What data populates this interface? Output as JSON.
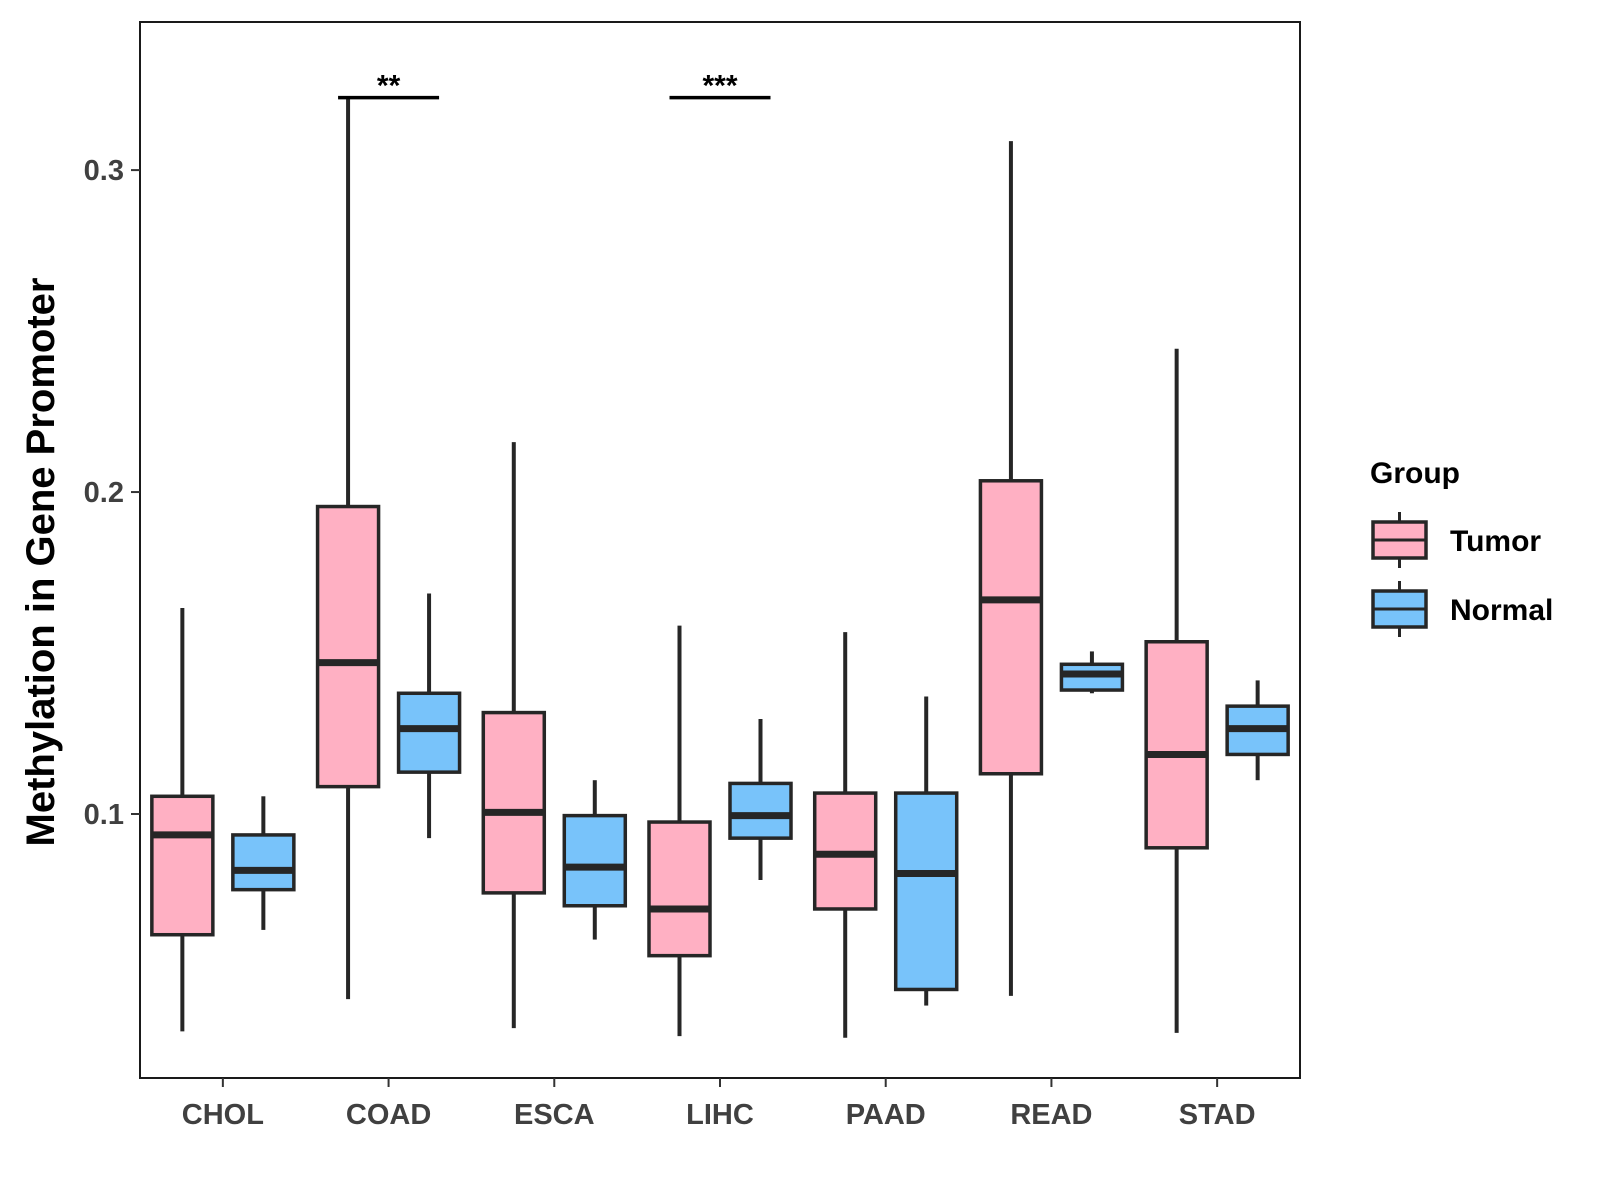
{
  "chart_data": {
    "type": "box",
    "title": "",
    "xlabel": "",
    "ylabel": "Methylation in Gene Promoter",
    "ylim": [
      0.018,
      0.346
    ],
    "yticks": [
      0.1,
      0.2,
      0.3
    ],
    "ytick_labels": [
      "0.1",
      "0.2",
      "0.3"
    ],
    "categories": [
      "CHOL",
      "COAD",
      "ESCA",
      "LIHC",
      "PAAD",
      "READ",
      "STAD"
    ],
    "legend": {
      "title": "Group",
      "position": "right",
      "entries": [
        {
          "name": "Tumor",
          "color": "#FFB0C3"
        },
        {
          "name": "Normal",
          "color": "#78C3FA"
        }
      ]
    },
    "series": [
      {
        "name": "Tumor",
        "color": "#FFB0C3",
        "boxes": [
          {
            "category": "CHOL",
            "min": 0.0325,
            "q1": 0.0625,
            "median": 0.0935,
            "q3": 0.1055,
            "max": 0.164
          },
          {
            "category": "COAD",
            "min": 0.0425,
            "q1": 0.1085,
            "median": 0.147,
            "q3": 0.1955,
            "max": 0.3225
          },
          {
            "category": "ESCA",
            "min": 0.0335,
            "q1": 0.0755,
            "median": 0.1005,
            "q3": 0.1315,
            "max": 0.2155
          },
          {
            "category": "LIHC",
            "min": 0.031,
            "q1": 0.056,
            "median": 0.0705,
            "q3": 0.0975,
            "max": 0.1585
          },
          {
            "category": "PAAD",
            "min": 0.0305,
            "q1": 0.0705,
            "median": 0.0875,
            "q3": 0.1065,
            "max": 0.1565
          },
          {
            "category": "READ",
            "min": 0.0435,
            "q1": 0.1125,
            "median": 0.1665,
            "q3": 0.2035,
            "max": 0.309
          },
          {
            "category": "STAD",
            "min": 0.032,
            "q1": 0.0895,
            "median": 0.1185,
            "q3": 0.1535,
            "max": 0.2445
          }
        ]
      },
      {
        "name": "Normal",
        "color": "#78C3FA",
        "boxes": [
          {
            "category": "CHOL",
            "min": 0.064,
            "q1": 0.0765,
            "median": 0.0825,
            "q3": 0.0935,
            "max": 0.1055
          },
          {
            "category": "COAD",
            "min": 0.0925,
            "q1": 0.113,
            "median": 0.1265,
            "q3": 0.1375,
            "max": 0.1685
          },
          {
            "category": "ESCA",
            "min": 0.061,
            "q1": 0.0715,
            "median": 0.0835,
            "q3": 0.0995,
            "max": 0.1105
          },
          {
            "category": "LIHC",
            "min": 0.0795,
            "q1": 0.0925,
            "median": 0.0995,
            "q3": 0.1095,
            "max": 0.1295
          },
          {
            "category": "PAAD",
            "min": 0.0405,
            "q1": 0.0455,
            "median": 0.0815,
            "q3": 0.1065,
            "max": 0.1365
          },
          {
            "category": "READ",
            "min": 0.1375,
            "q1": 0.1385,
            "median": 0.1435,
            "q3": 0.1465,
            "max": 0.1505
          },
          {
            "category": "STAD",
            "min": 0.1105,
            "q1": 0.1185,
            "median": 0.1265,
            "q3": 0.1335,
            "max": 0.1415
          }
        ]
      }
    ],
    "annotations": [
      {
        "category": "COAD",
        "label": "**",
        "y": 0.3225
      },
      {
        "category": "LIHC",
        "label": "***",
        "y": 0.3225
      }
    ]
  }
}
